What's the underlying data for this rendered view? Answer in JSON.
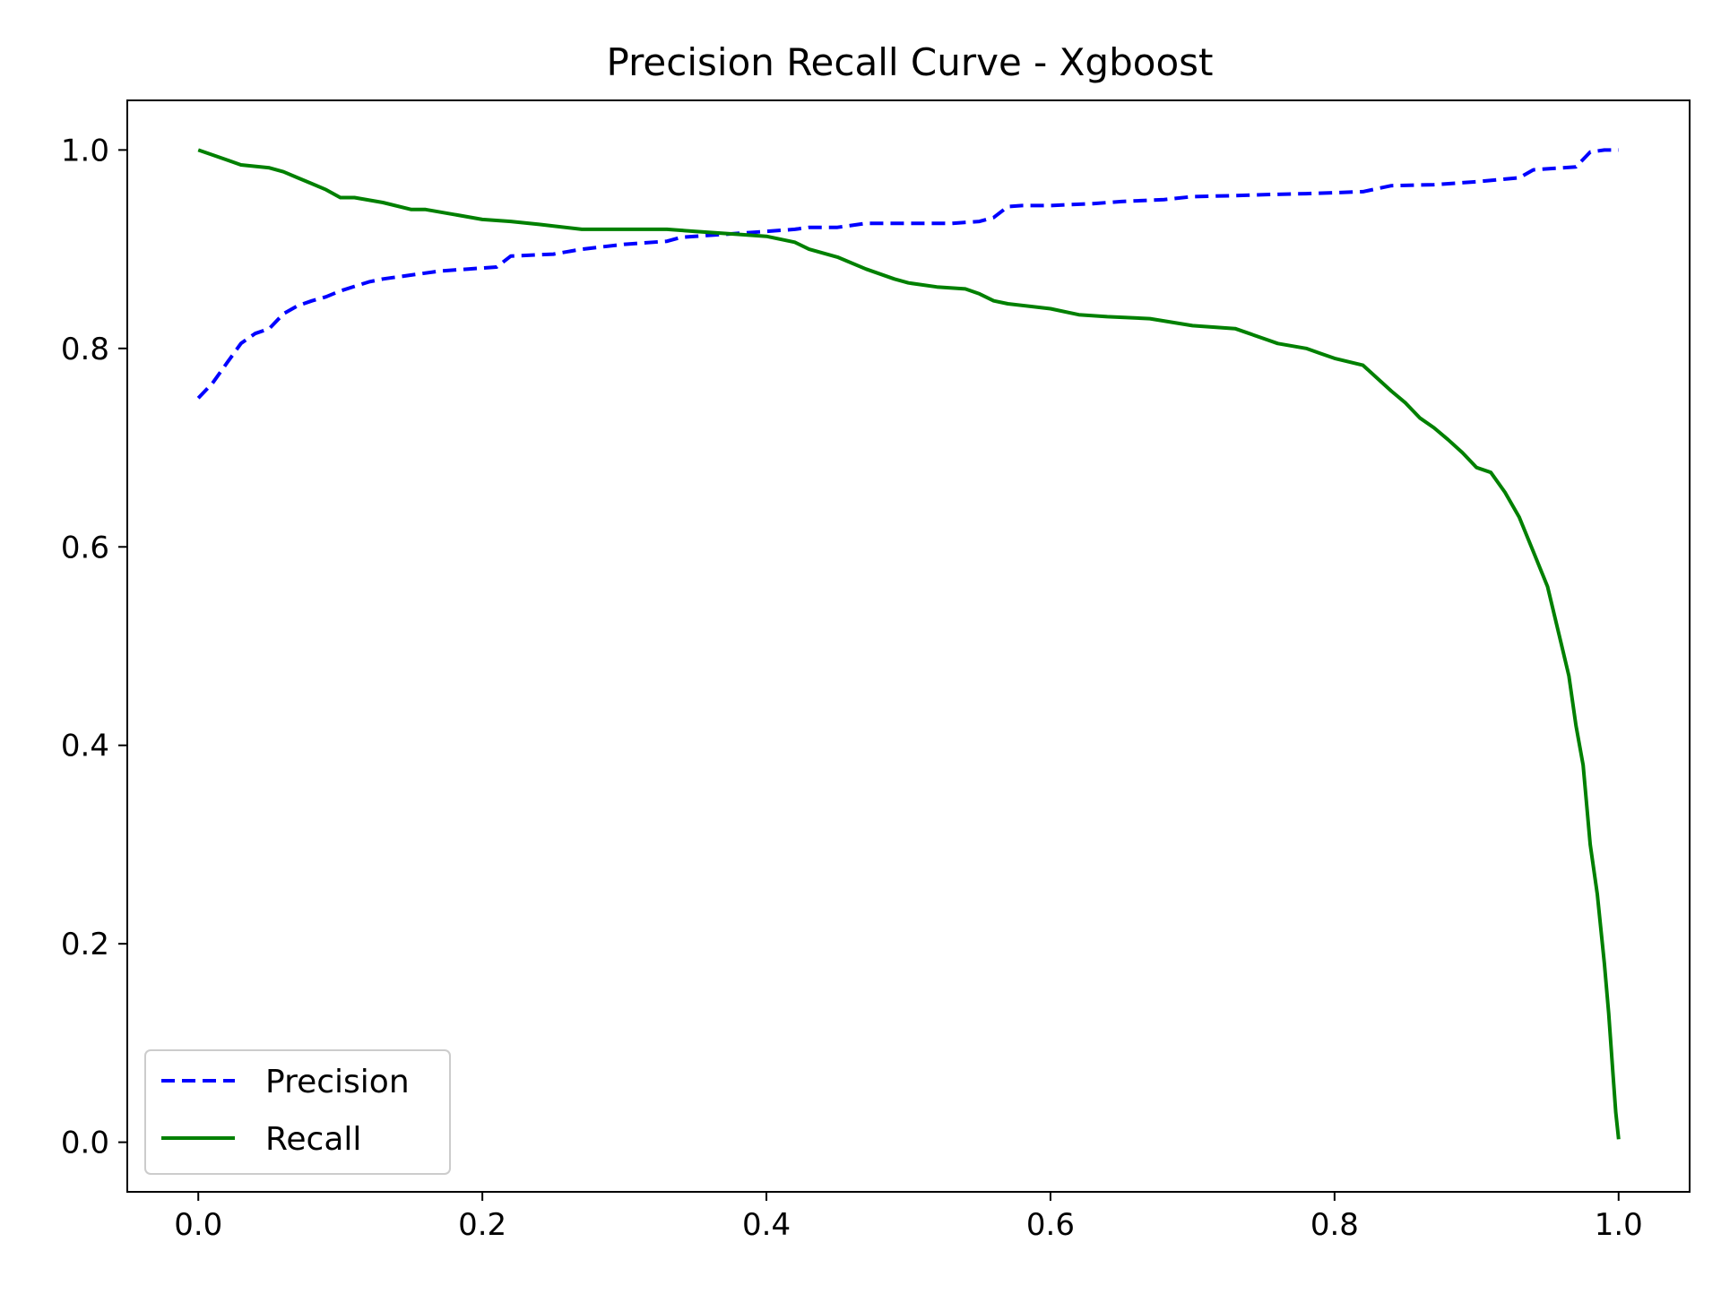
{
  "chart_data": {
    "type": "line",
    "title": "Precision Recall Curve - Xgboost",
    "xlabel": "",
    "ylabel": "",
    "xlim": [
      -0.05,
      1.05
    ],
    "ylim": [
      -0.05,
      1.05
    ],
    "x_ticks": [
      0.0,
      0.2,
      0.4,
      0.6,
      0.8,
      1.0
    ],
    "x_tick_labels": [
      "0.0",
      "0.2",
      "0.4",
      "0.6",
      "0.8",
      "1.0"
    ],
    "y_ticks": [
      0.0,
      0.2,
      0.4,
      0.6,
      0.8,
      1.0
    ],
    "y_tick_labels": [
      "0.0",
      "0.2",
      "0.4",
      "0.6",
      "0.8",
      "1.0"
    ],
    "grid": false,
    "legend_position": "lower-left",
    "series": [
      {
        "name": "Precision",
        "color": "#0000ff",
        "style": "dashed",
        "x": [
          0.0,
          0.01,
          0.02,
          0.03,
          0.04,
          0.05,
          0.06,
          0.07,
          0.08,
          0.09,
          0.1,
          0.12,
          0.13,
          0.15,
          0.17,
          0.19,
          0.21,
          0.22,
          0.25,
          0.27,
          0.3,
          0.33,
          0.34,
          0.37,
          0.4,
          0.42,
          0.43,
          0.45,
          0.47,
          0.5,
          0.53,
          0.55,
          0.56,
          0.57,
          0.58,
          0.6,
          0.63,
          0.65,
          0.68,
          0.7,
          0.73,
          0.75,
          0.78,
          0.8,
          0.82,
          0.84,
          0.87,
          0.9,
          0.93,
          0.94,
          0.96,
          0.97,
          0.98,
          0.99,
          1.0
        ],
        "y": [
          0.75,
          0.765,
          0.785,
          0.805,
          0.815,
          0.82,
          0.835,
          0.843,
          0.848,
          0.852,
          0.858,
          0.867,
          0.87,
          0.874,
          0.878,
          0.88,
          0.882,
          0.893,
          0.895,
          0.9,
          0.905,
          0.908,
          0.912,
          0.915,
          0.918,
          0.92,
          0.922,
          0.922,
          0.926,
          0.926,
          0.926,
          0.928,
          0.932,
          0.943,
          0.944,
          0.944,
          0.946,
          0.948,
          0.95,
          0.953,
          0.954,
          0.955,
          0.956,
          0.957,
          0.958,
          0.964,
          0.965,
          0.968,
          0.972,
          0.98,
          0.982,
          0.983,
          0.998,
          1.0,
          1.0
        ]
      },
      {
        "name": "Recall",
        "color": "#008000",
        "style": "solid",
        "x": [
          0.0,
          0.01,
          0.02,
          0.03,
          0.05,
          0.06,
          0.07,
          0.08,
          0.09,
          0.1,
          0.11,
          0.13,
          0.15,
          0.16,
          0.18,
          0.2,
          0.22,
          0.24,
          0.27,
          0.3,
          0.33,
          0.35,
          0.38,
          0.4,
          0.42,
          0.43,
          0.45,
          0.47,
          0.49,
          0.5,
          0.52,
          0.54,
          0.55,
          0.56,
          0.57,
          0.6,
          0.62,
          0.64,
          0.67,
          0.7,
          0.73,
          0.74,
          0.76,
          0.78,
          0.79,
          0.8,
          0.82,
          0.83,
          0.84,
          0.85,
          0.86,
          0.87,
          0.88,
          0.89,
          0.9,
          0.91,
          0.92,
          0.93,
          0.94,
          0.95,
          0.96,
          0.965,
          0.97,
          0.975,
          0.98,
          0.985,
          0.99,
          0.993,
          0.996,
          0.998,
          1.0
        ],
        "y": [
          1.0,
          0.995,
          0.99,
          0.985,
          0.982,
          0.978,
          0.972,
          0.966,
          0.96,
          0.952,
          0.952,
          0.947,
          0.94,
          0.94,
          0.935,
          0.93,
          0.928,
          0.925,
          0.92,
          0.92,
          0.92,
          0.918,
          0.915,
          0.913,
          0.907,
          0.9,
          0.892,
          0.88,
          0.87,
          0.866,
          0.862,
          0.86,
          0.855,
          0.848,
          0.845,
          0.84,
          0.834,
          0.832,
          0.83,
          0.823,
          0.82,
          0.815,
          0.805,
          0.8,
          0.795,
          0.79,
          0.783,
          0.77,
          0.757,
          0.745,
          0.73,
          0.72,
          0.708,
          0.695,
          0.68,
          0.675,
          0.655,
          0.63,
          0.595,
          0.56,
          0.5,
          0.47,
          0.42,
          0.38,
          0.3,
          0.25,
          0.18,
          0.13,
          0.07,
          0.03,
          0.003
        ]
      }
    ]
  }
}
